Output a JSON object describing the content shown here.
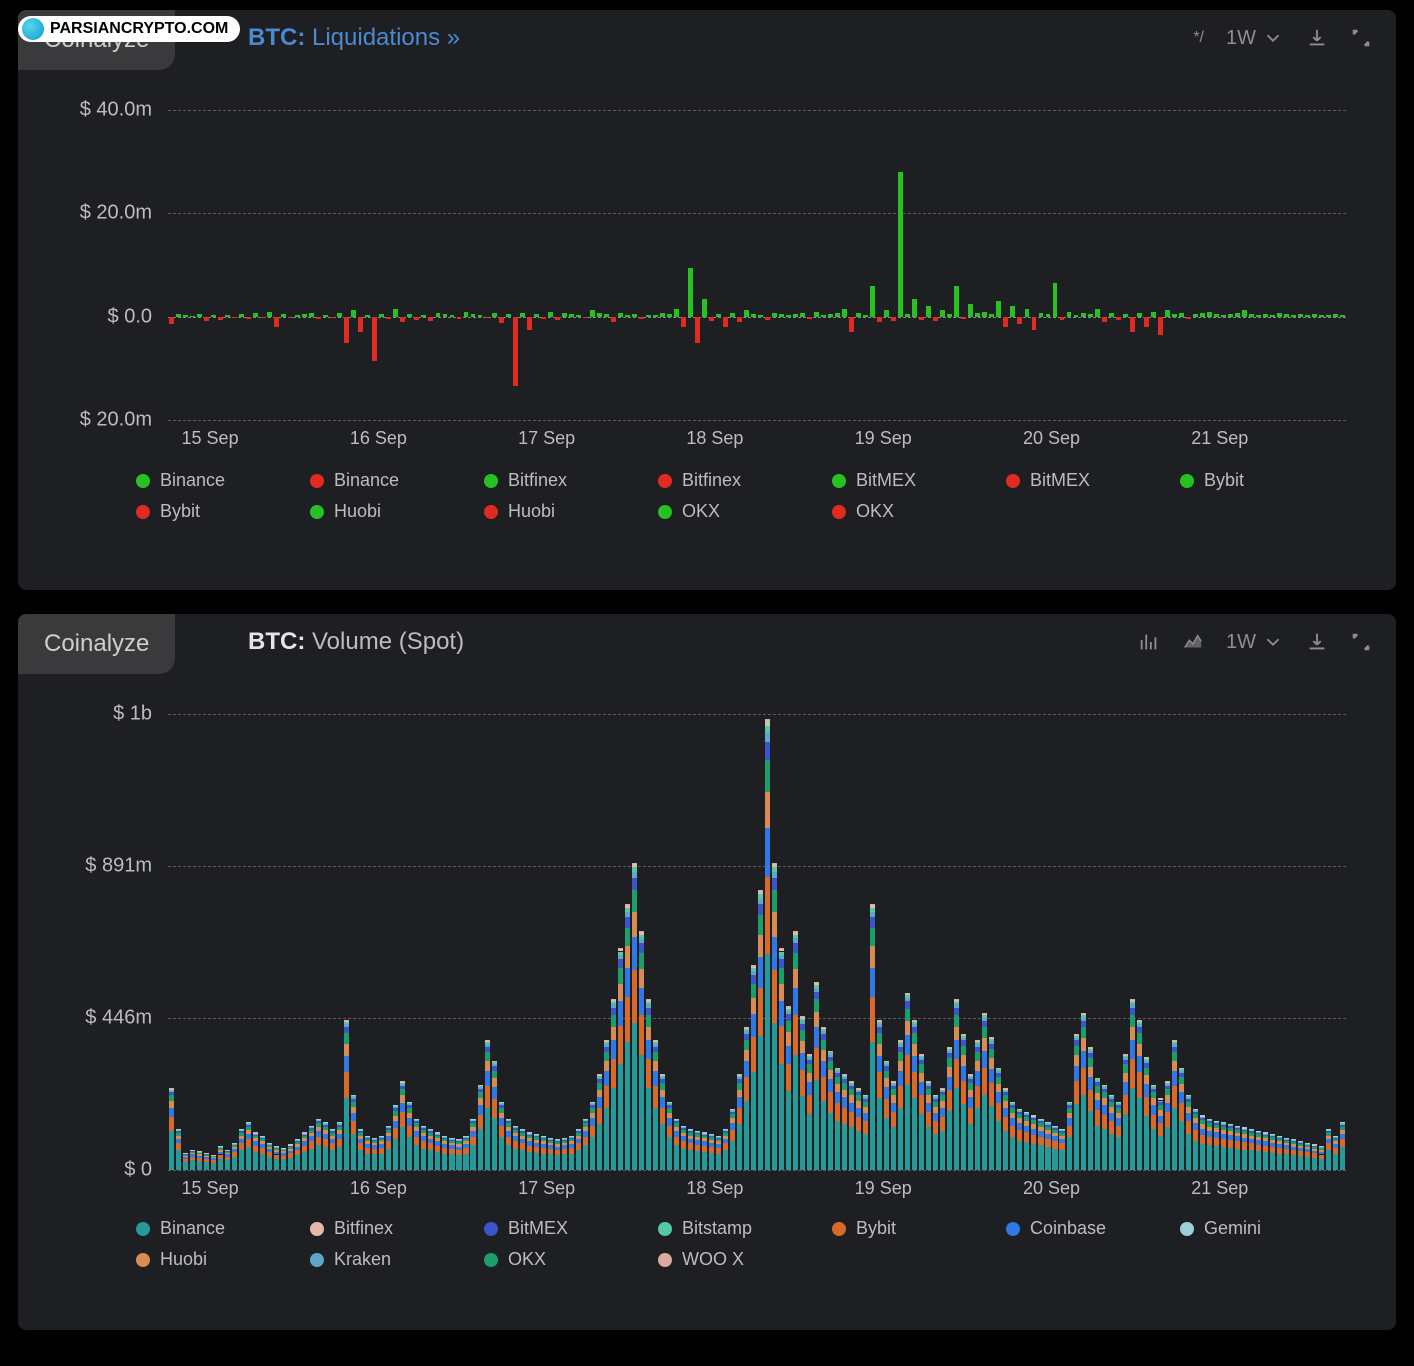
{
  "watermark_text": "PARSIANCRYPTO.COM",
  "brand": "Coinalyze",
  "colors": {
    "bg": "#000000",
    "panel": "#1e1f22",
    "tab": "#3a3a3d",
    "text": "#bdbdbd",
    "text_dim": "#909296",
    "grid": "#5a5a5a",
    "link": "#4a8ad0",
    "green": "#27c221",
    "red": "#e22b20",
    "vol": {
      "Binance": "#259a99",
      "Bitfinex": "#e6b8a6",
      "BitMEX": "#3c54c9",
      "Bitstamp": "#53c9a7",
      "Bybit": "#d76a2a",
      "Coinbase": "#2f78e6",
      "Gemini": "#9bd1d6",
      "Huobi": "#d88b52",
      "Kraken": "#5ea7c9",
      "OKX": "#1a9e6a",
      "WOO X": "#d9a9a2"
    }
  },
  "timeframe": "1W",
  "chart_liq": {
    "title_symbol": "BTC:",
    "title_sub": " Liquidations »",
    "type": "bar-diverging",
    "y": {
      "labels": [
        "$ 40.0m",
        "$ 20.0m",
        "$ 0.0",
        "$ 20.0m"
      ],
      "values": [
        40,
        20,
        0,
        -20
      ]
    },
    "x": {
      "labels": [
        "15 Sep",
        "16 Sep",
        "17 Sep",
        "18 Sep",
        "19 Sep",
        "20 Sep",
        "21 Sep"
      ]
    },
    "legend": [
      {
        "color": "#27c221",
        "label": "Binance"
      },
      {
        "color": "#e22b20",
        "label": "Binance"
      },
      {
        "color": "#27c221",
        "label": "Bitfinex"
      },
      {
        "color": "#e22b20",
        "label": "Bitfinex"
      },
      {
        "color": "#27c221",
        "label": "BitMEX"
      },
      {
        "color": "#e22b20",
        "label": "BitMEX"
      },
      {
        "color": "#27c221",
        "label": "Bybit"
      },
      {
        "color": "#e22b20",
        "label": "Bybit"
      },
      {
        "color": "#27c221",
        "label": "Huobi"
      },
      {
        "color": "#e22b20",
        "label": "Huobi"
      },
      {
        "color": "#27c221",
        "label": "OKX"
      },
      {
        "color": "#e22b20",
        "label": "OKX"
      }
    ],
    "data": [
      -1.5,
      0.5,
      0.3,
      0.2,
      0.6,
      -0.8,
      0.3,
      -0.6,
      0.4,
      -0.3,
      0.5,
      -0.4,
      0.8,
      -0.2,
      1.0,
      -2.0,
      0.5,
      -0.3,
      0.4,
      0.6,
      0.8,
      -0.4,
      0.3,
      -0.2,
      0.8,
      -5.0,
      1.2,
      -3.0,
      0.4,
      -8.5,
      0.6,
      -0.4,
      1.5,
      -1.0,
      0.5,
      -0.6,
      0.3,
      -0.8,
      0.8,
      0.5,
      0.3,
      -0.4,
      1.0,
      0.6,
      0.4,
      -0.3,
      0.8,
      -1.2,
      0.5,
      -13.5,
      0.8,
      -2.5,
      0.6,
      -0.4,
      1.0,
      -0.6,
      0.8,
      0.5,
      0.4,
      -0.3,
      1.2,
      0.8,
      0.5,
      -1.0,
      0.8,
      0.4,
      0.6,
      -0.5,
      0.4,
      0.3,
      0.8,
      0.5,
      1.5,
      -2.0,
      9.5,
      -5.0,
      3.5,
      -0.8,
      0.6,
      -2.0,
      0.8,
      -1.0,
      1.2,
      0.5,
      0.4,
      -0.6,
      0.8,
      0.5,
      0.4,
      0.6,
      0.8,
      -0.5,
      1.0,
      0.4,
      0.5,
      0.8,
      1.5,
      -3.0,
      0.8,
      0.4,
      6.0,
      -1.0,
      1.2,
      -0.8,
      28.0,
      0.5,
      3.5,
      -0.6,
      2.0,
      -0.8,
      1.2,
      0.5,
      6.0,
      -0.4,
      2.5,
      0.8,
      1.0,
      0.6,
      3.0,
      -2.0,
      2.0,
      -1.5,
      1.5,
      -2.5,
      0.8,
      0.5,
      6.5,
      -0.6,
      1.0,
      0.4,
      0.8,
      0.5,
      1.5,
      -1.0,
      0.8,
      -0.6,
      0.5,
      -3.0,
      0.8,
      -2.0,
      1.0,
      -3.5,
      1.2,
      0.5,
      0.8,
      -0.4,
      0.6,
      0.8,
      1.0,
      0.5,
      0.4,
      0.6,
      0.8,
      1.2,
      0.5,
      0.4,
      0.6,
      0.3,
      0.8,
      0.5,
      0.4,
      0.6,
      0.3,
      0.5,
      0.4,
      0.3,
      0.5,
      0.4
    ]
  },
  "chart_vol": {
    "title_symbol": "BTC:",
    "title_sub": " Volume (Spot)",
    "type": "bar-stacked",
    "y": {
      "labels": [
        "$ 1b",
        "$ 891m",
        "$ 446m",
        "$ 0"
      ],
      "values": [
        1336,
        891,
        446,
        0
      ]
    },
    "x": {
      "labels": [
        "15 Sep",
        "16 Sep",
        "17 Sep",
        "18 Sep",
        "19 Sep",
        "20 Sep",
        "21 Sep"
      ]
    },
    "legend": [
      {
        "c": "Binance"
      },
      {
        "c": "Bitfinex"
      },
      {
        "c": "BitMEX"
      },
      {
        "c": "Bitstamp"
      },
      {
        "c": "Bybit"
      },
      {
        "c": "Coinbase"
      },
      {
        "c": "Gemini"
      },
      {
        "c": "Huobi"
      },
      {
        "c": "Kraken"
      },
      {
        "c": "OKX"
      },
      {
        "c": "WOO X"
      }
    ],
    "totals": [
      240,
      120,
      50,
      60,
      55,
      50,
      45,
      70,
      60,
      80,
      120,
      140,
      110,
      100,
      80,
      70,
      65,
      75,
      90,
      110,
      130,
      150,
      140,
      120,
      140,
      440,
      220,
      120,
      100,
      95,
      100,
      130,
      190,
      260,
      200,
      150,
      130,
      120,
      110,
      100,
      95,
      90,
      100,
      150,
      250,
      380,
      320,
      200,
      150,
      130,
      120,
      110,
      105,
      100,
      95,
      90,
      95,
      100,
      120,
      150,
      200,
      280,
      380,
      500,
      650,
      780,
      900,
      700,
      500,
      380,
      280,
      200,
      150,
      130,
      120,
      115,
      110,
      105,
      100,
      120,
      180,
      280,
      420,
      600,
      820,
      1320,
      900,
      650,
      480,
      700,
      450,
      340,
      550,
      420,
      350,
      300,
      280,
      260,
      240,
      220,
      780,
      440,
      320,
      260,
      380,
      520,
      440,
      340,
      260,
      220,
      240,
      360,
      500,
      400,
      280,
      380,
      460,
      390,
      300,
      240,
      200,
      180,
      170,
      160,
      150,
      140,
      130,
      120,
      200,
      400,
      460,
      360,
      270,
      250,
      220,
      200,
      340,
      500,
      440,
      330,
      250,
      210,
      260,
      380,
      300,
      220,
      180,
      160,
      150,
      145,
      140,
      135,
      130,
      125,
      120,
      115,
      110,
      105,
      100,
      95,
      90,
      85,
      80,
      75,
      70,
      120,
      100,
      140
    ],
    "stack_ratio": [
      {
        "k": "Binance",
        "r": 0.48
      },
      {
        "k": "Bybit",
        "r": 0.17
      },
      {
        "k": "Coinbase",
        "r": 0.11
      },
      {
        "k": "Huobi",
        "r": 0.08
      },
      {
        "k": "OKX",
        "r": 0.07
      },
      {
        "k": "BitMEX",
        "r": 0.04
      },
      {
        "k": "Kraken",
        "r": 0.02
      },
      {
        "k": "Bitstamp",
        "r": 0.015
      },
      {
        "k": "Bitfinex",
        "r": 0.01
      },
      {
        "k": "Gemini",
        "r": 0.004
      },
      {
        "k": "WOO X",
        "r": 0.001
      }
    ]
  }
}
